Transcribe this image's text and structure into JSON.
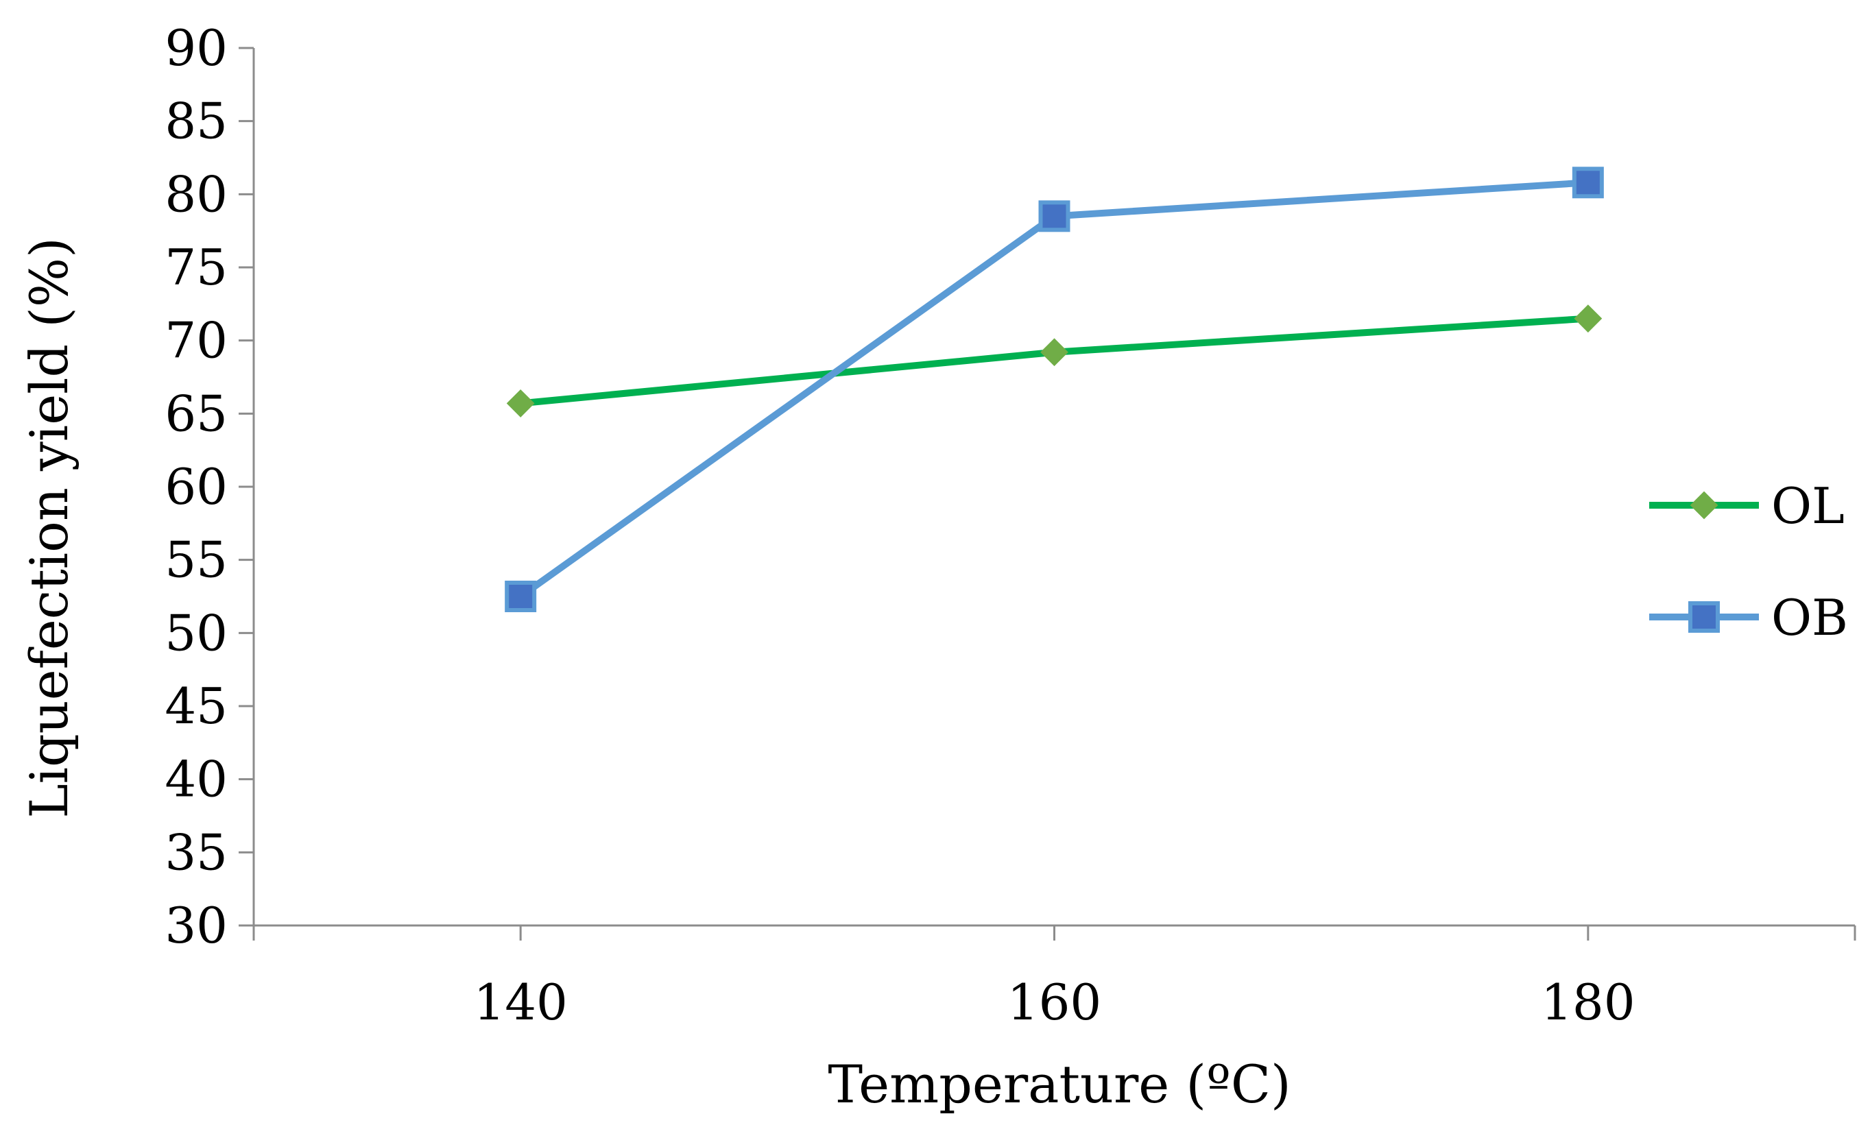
{
  "chart_data": {
    "type": "line",
    "title": "",
    "xlabel": "Temperature (ºC)",
    "ylabel": "Liquefection yield (%)",
    "categories": [
      "140",
      "160",
      "180"
    ],
    "x": [
      140,
      160,
      180
    ],
    "xlim": [
      130,
      190
    ],
    "ylim": [
      30,
      90
    ],
    "yticks": [
      "30",
      "35",
      "40",
      "45",
      "50",
      "55",
      "60",
      "65",
      "70",
      "75",
      "80",
      "85",
      "90"
    ],
    "grid": false,
    "legend_position": "right",
    "series": [
      {
        "name": "OL",
        "values": [
          65.7,
          69.2,
          71.5
        ],
        "color": "#00b050",
        "marker_color": "#70ad47",
        "marker": "diamond"
      },
      {
        "name": "OB",
        "values": [
          52.5,
          78.5,
          80.8
        ],
        "color": "#5b9bd5",
        "marker_color": "#4472c4",
        "marker": "square"
      }
    ]
  }
}
